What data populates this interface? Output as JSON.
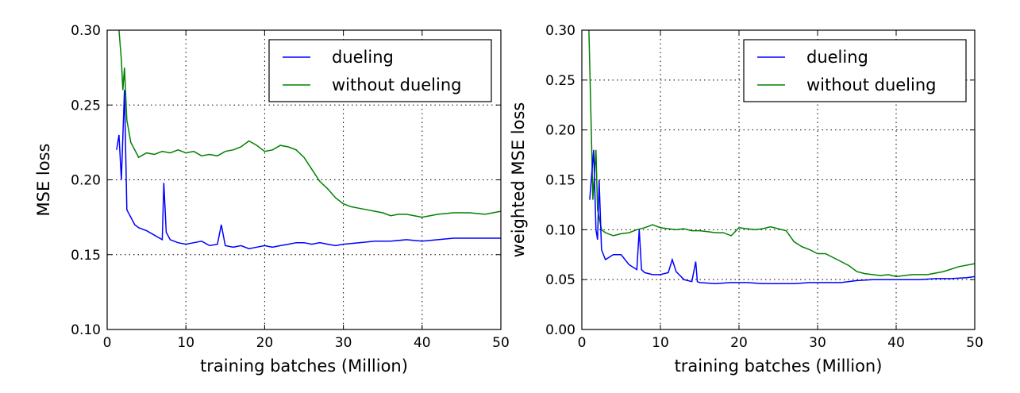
{
  "chart_data": [
    {
      "type": "line",
      "title": "",
      "xlabel": "training batches (Million)",
      "ylabel": "MSE loss",
      "xlim": [
        0,
        50
      ],
      "ylim": [
        0.1,
        0.3
      ],
      "xticks": [
        "0",
        "10",
        "20",
        "30",
        "40",
        "50"
      ],
      "yticks": [
        "0.10",
        "0.15",
        "0.20",
        "0.25",
        "0.30"
      ],
      "grid": true,
      "legend_position": "top-right",
      "series": [
        {
          "name": "dueling",
          "color": "#0000ff",
          "x": [
            1.2,
            1.5,
            1.8,
            2.2,
            2.5,
            3,
            3.5,
            4,
            5,
            6,
            7,
            7.2,
            7.5,
            8,
            9,
            10,
            11,
            12,
            13,
            14,
            14.5,
            15,
            16,
            17,
            18,
            19,
            20,
            21,
            22,
            23,
            24,
            25,
            26,
            27,
            28,
            29,
            30,
            32,
            34,
            36,
            38,
            40,
            42,
            44,
            46,
            48,
            50
          ],
          "y": [
            0.22,
            0.23,
            0.2,
            0.26,
            0.18,
            0.175,
            0.17,
            0.168,
            0.166,
            0.163,
            0.16,
            0.198,
            0.165,
            0.16,
            0.158,
            0.157,
            0.158,
            0.159,
            0.156,
            0.157,
            0.17,
            0.156,
            0.155,
            0.156,
            0.154,
            0.155,
            0.156,
            0.155,
            0.156,
            0.157,
            0.158,
            0.158,
            0.157,
            0.158,
            0.157,
            0.156,
            0.157,
            0.158,
            0.159,
            0.159,
            0.16,
            0.159,
            0.16,
            0.161,
            0.161,
            0.161,
            0.161
          ]
        },
        {
          "name": "without dueling",
          "color": "#008000",
          "x": [
            1.5,
            1.8,
            2,
            2.2,
            2.5,
            3,
            4,
            5,
            6,
            7,
            8,
            9,
            10,
            11,
            12,
            13,
            14,
            15,
            16,
            17,
            18,
            19,
            20,
            21,
            22,
            23,
            24,
            25,
            26,
            27,
            28,
            29,
            30,
            31,
            32,
            33,
            34,
            35,
            36,
            37,
            38,
            39,
            40,
            42,
            44,
            46,
            48,
            50
          ],
          "y": [
            0.3,
            0.28,
            0.26,
            0.275,
            0.24,
            0.225,
            0.215,
            0.218,
            0.217,
            0.219,
            0.218,
            0.22,
            0.218,
            0.219,
            0.216,
            0.217,
            0.216,
            0.219,
            0.22,
            0.222,
            0.226,
            0.223,
            0.219,
            0.22,
            0.223,
            0.222,
            0.22,
            0.215,
            0.207,
            0.199,
            0.194,
            0.188,
            0.184,
            0.182,
            0.181,
            0.18,
            0.179,
            0.178,
            0.176,
            0.177,
            0.177,
            0.176,
            0.175,
            0.177,
            0.178,
            0.178,
            0.177,
            0.179
          ]
        }
      ]
    },
    {
      "type": "line",
      "title": "",
      "xlabel": "training batches (Million)",
      "ylabel": "weighted MSE loss",
      "xlim": [
        0,
        50
      ],
      "ylim": [
        0.0,
        0.3
      ],
      "xticks": [
        "0",
        "10",
        "20",
        "30",
        "40",
        "50"
      ],
      "yticks": [
        "0.00",
        "0.05",
        "0.10",
        "0.15",
        "0.20",
        "0.25",
        "0.30"
      ],
      "grid": true,
      "legend_position": "top-right",
      "series": [
        {
          "name": "dueling",
          "color": "#0000ff",
          "x": [
            1,
            1.5,
            1.8,
            2,
            2.2,
            2.5,
            3,
            4,
            5,
            6,
            7,
            7.3,
            7.6,
            8,
            9,
            10,
            11,
            11.5,
            12,
            13,
            14,
            14.5,
            14.7,
            15,
            17,
            19,
            21,
            23,
            25,
            27,
            29,
            31,
            33,
            35,
            37,
            39,
            41,
            43,
            45,
            47,
            49,
            50
          ],
          "y": [
            0.13,
            0.18,
            0.1,
            0.09,
            0.15,
            0.08,
            0.07,
            0.075,
            0.075,
            0.065,
            0.06,
            0.1,
            0.06,
            0.057,
            0.055,
            0.055,
            0.057,
            0.07,
            0.058,
            0.05,
            0.048,
            0.068,
            0.048,
            0.047,
            0.046,
            0.047,
            0.047,
            0.046,
            0.046,
            0.046,
            0.047,
            0.047,
            0.047,
            0.049,
            0.05,
            0.05,
            0.05,
            0.05,
            0.051,
            0.051,
            0.052,
            0.053
          ]
        },
        {
          "name": "without dueling",
          "color": "#008000",
          "x": [
            0.9,
            1.2,
            1.4,
            1.8,
            2,
            2.5,
            3,
            4,
            5,
            6,
            7,
            8,
            9,
            10,
            11,
            12,
            13,
            14,
            15,
            16,
            17,
            18,
            19,
            20,
            21,
            22,
            23,
            24,
            25,
            26,
            27,
            28,
            29,
            30,
            31,
            32,
            33,
            34,
            35,
            36,
            37,
            38,
            39,
            40,
            42,
            44,
            46,
            48,
            50
          ],
          "y": [
            0.3,
            0.2,
            0.13,
            0.18,
            0.12,
            0.1,
            0.097,
            0.094,
            0.096,
            0.097,
            0.1,
            0.102,
            0.105,
            0.102,
            0.101,
            0.1,
            0.101,
            0.099,
            0.099,
            0.098,
            0.097,
            0.097,
            0.094,
            0.102,
            0.101,
            0.1,
            0.101,
            0.103,
            0.101,
            0.099,
            0.088,
            0.083,
            0.08,
            0.076,
            0.076,
            0.072,
            0.068,
            0.064,
            0.058,
            0.056,
            0.055,
            0.054,
            0.055,
            0.053,
            0.055,
            0.055,
            0.058,
            0.063,
            0.066
          ]
        }
      ]
    }
  ]
}
